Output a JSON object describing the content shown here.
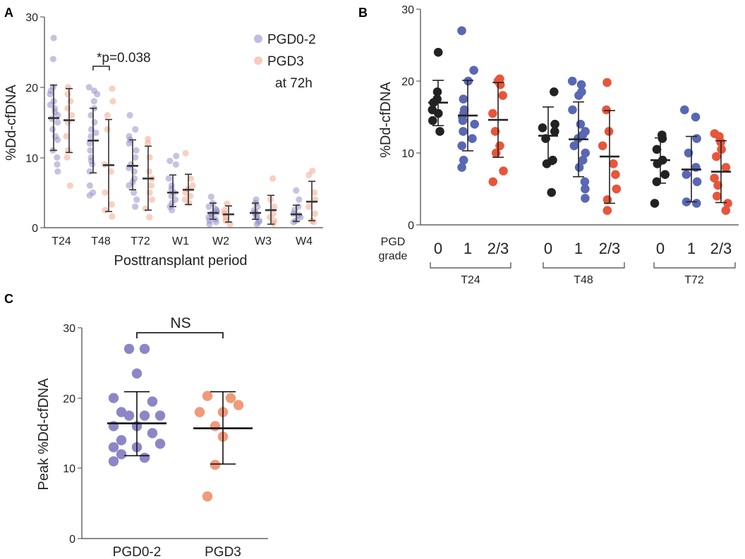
{
  "panels": [
    "A",
    "B",
    "C"
  ],
  "colors": {
    "pgd02": "#8b87c6",
    "pgd3": "#f3a283",
    "b_grade0": "#222222",
    "b_grade1": "#5a67b3",
    "b_grade23": "#e8553a",
    "c_pgd02": "#8b87c6",
    "c_pgd3": "#f09a7a"
  },
  "chart_data": [
    {
      "id": "A",
      "type": "scatter",
      "title": "",
      "xlabel": "Posttransplant period",
      "ylabel": "%Dd-cfDNA",
      "ylim": [
        0,
        30
      ],
      "yticks": [
        "0",
        "10",
        "20",
        "30"
      ],
      "categories": [
        "T24",
        "T48",
        "T72",
        "W1",
        "W2",
        "W3",
        "W4"
      ],
      "legend": {
        "position": "top-right",
        "entries": [
          "PGD0-2",
          "PGD3",
          "at 72h"
        ]
      },
      "annotation": "*p=0.038",
      "series": [
        {
          "name": "PGD0-2",
          "mean": [
            15.6,
            12.4,
            8.8,
            5.0,
            2.1,
            2.1,
            1.9
          ],
          "sd_low": [
            11.0,
            7.8,
            5.4,
            3.0,
            1.2,
            1.2,
            0.9
          ],
          "sd_high": [
            20.3,
            17.0,
            12.5,
            7.5,
            3.5,
            3.5,
            3.2
          ],
          "points": [
            [
              27,
              24,
              20,
              19.5,
              19,
              18,
              17.5,
              17,
              16.5,
              16,
              15.5,
              15,
              14,
              13,
              12.5,
              11,
              10,
              9,
              8
            ],
            [
              20,
              19.5,
              19,
              18,
              17,
              16,
              15,
              14,
              13.5,
              13,
              12,
              11,
              10,
              9.5,
              9,
              8,
              6,
              5,
              4.6
            ],
            [
              16,
              14,
              13,
              12.5,
              12,
              11,
              10,
              9,
              8.5,
              8,
              7,
              6.5,
              6,
              5,
              4,
              3
            ],
            [
              10.2,
              9.5,
              9,
              7,
              6,
              5.5,
              5,
              4.5,
              4,
              3.5,
              3,
              2.5
            ],
            [
              4.4,
              3.5,
              3,
              2.7,
              2.5,
              2.2,
              2,
              1.8,
              1.5,
              1.2,
              1,
              0.8,
              0.5
            ],
            [
              4,
              3.5,
              3,
              2.5,
              2.2,
              2,
              1.8,
              1.5,
              1,
              0.8,
              0.5
            ],
            [
              5.3,
              4,
              3,
              2.5,
              2,
              1.8,
              1.5,
              1,
              0.8
            ]
          ]
        },
        {
          "name": "PGD3",
          "mean": [
            15.3,
            8.9,
            7.0,
            5.4,
            1.9,
            2.5,
            3.7
          ],
          "sd_low": [
            10.7,
            2.3,
            2.5,
            3.3,
            0.8,
            0.5,
            1.0
          ],
          "sd_high": [
            19.8,
            15.4,
            11.6,
            7.6,
            3.1,
            4.6,
            6.6
          ],
          "points": [
            [
              20,
              19,
              18,
              17,
              16,
              15,
              13,
              11,
              10,
              6
            ],
            [
              19.8,
              18,
              16,
              14,
              9,
              8,
              5,
              3.3,
              2.5,
              1.6
            ],
            [
              12.6,
              12,
              10,
              8,
              7,
              6,
              5,
              4,
              2.7,
              1.5
            ],
            [
              10.6,
              7,
              6,
              5.5,
              5,
              4.5,
              4,
              3.5
            ],
            [
              3.4,
              2.5,
              2,
              1.5,
              1,
              0.5
            ],
            [
              7,
              4,
              3,
              2,
              1.5,
              1,
              0.6
            ],
            [
              8.1,
              7.5,
              5,
              4,
              3,
              2,
              1,
              0.8
            ]
          ]
        }
      ]
    },
    {
      "id": "B",
      "type": "scatter",
      "ylabel": "%Dd-cfDNA",
      "ylim": [
        0,
        30
      ],
      "yticks": [
        "0",
        "10",
        "20",
        "30"
      ],
      "row_label_1": "PGD",
      "row_label_2": "grade",
      "grade_labels": [
        "0",
        "1",
        "2/3"
      ],
      "groups": [
        "T24",
        "T48",
        "T72"
      ],
      "series": [
        {
          "name": "0",
          "mean": [
            17.0,
            12.4,
            9.0
          ],
          "sd_low": [
            13.8,
            8.4,
            5.8
          ],
          "sd_high": [
            20.1,
            16.4,
            12.1
          ],
          "points": [
            [
              24,
              18.5,
              17.5,
              17,
              16,
              15.5,
              14.5,
              13
            ],
            [
              18.5,
              14,
              13.5,
              13,
              12,
              9,
              8.5,
              4.5
            ],
            [
              12.5,
              12,
              10.5,
              9,
              8.5,
              7,
              6,
              3
            ]
          ]
        },
        {
          "name": "1",
          "mean": [
            15.2,
            11.9,
            7.7
          ],
          "sd_low": [
            10.3,
            6.7,
            3.2
          ],
          "sd_high": [
            20.1,
            17.1,
            12.3
          ],
          "points": [
            [
              27,
              21.5,
              20,
              17.5,
              16,
              15.5,
              15,
              14.5,
              14,
              13,
              12,
              11,
              9,
              8
            ],
            [
              20,
              19.5,
              18.5,
              18,
              16,
              14,
              13,
              12.5,
              12,
              11,
              10,
              9,
              8,
              6,
              5,
              3.7
            ],
            [
              16,
              15,
              12,
              10,
              8,
              7,
              6,
              3.2,
              3
            ]
          ]
        },
        {
          "name": "2/3",
          "mean": [
            14.6,
            9.5,
            7.4
          ],
          "sd_low": [
            9.4,
            3.0,
            3.1
          ],
          "sd_high": [
            19.8,
            15.9,
            11.7
          ],
          "points": [
            [
              20.3,
              20,
              19.5,
              18,
              15.5,
              13,
              11,
              10,
              7.5,
              6
            ],
            [
              19.8,
              16,
              13,
              11,
              8.5,
              7,
              5,
              3.5,
              2
            ],
            [
              12.7,
              12.3,
              11.5,
              10.5,
              9.5,
              8,
              6.5,
              5.5,
              4,
              3,
              2
            ]
          ]
        }
      ]
    },
    {
      "id": "C",
      "type": "scatter",
      "ylabel": "Peak %Dd-cfDNA",
      "ylim": [
        0,
        30
      ],
      "yticks": [
        "0",
        "10",
        "20",
        "30"
      ],
      "categories": [
        "PGD0-2",
        "PGD3"
      ],
      "annotation": "NS",
      "series": [
        {
          "name": "PGD0-2",
          "mean": 16.4,
          "sd_low": 11.8,
          "sd_high": 20.9,
          "points": [
            [
              -1,
              27
            ],
            [
              1,
              27
            ],
            [
              0,
              23.5
            ],
            [
              -3,
              20
            ],
            [
              2,
              19.5
            ],
            [
              -2,
              18
            ],
            [
              -1,
              17.5
            ],
            [
              1,
              17.5
            ],
            [
              3,
              17.5
            ],
            [
              -3,
              16
            ],
            [
              0,
              16
            ],
            [
              2,
              15
            ],
            [
              -2,
              14
            ],
            [
              -3,
              13
            ],
            [
              0,
              13
            ],
            [
              3,
              13.5
            ],
            [
              -2,
              12
            ],
            [
              1,
              11.5
            ],
            [
              -3,
              11
            ]
          ]
        },
        {
          "name": "PGD3",
          "mean": 15.7,
          "sd_low": 10.6,
          "sd_high": 20.9,
          "points": [
            [
              -2,
              20.3
            ],
            [
              1,
              20
            ],
            [
              2,
              19
            ],
            [
              -3,
              18
            ],
            [
              0,
              18
            ],
            [
              -1,
              16
            ],
            [
              0,
              14.5
            ],
            [
              -1,
              10.5
            ],
            [
              -2,
              6
            ]
          ]
        }
      ]
    }
  ]
}
